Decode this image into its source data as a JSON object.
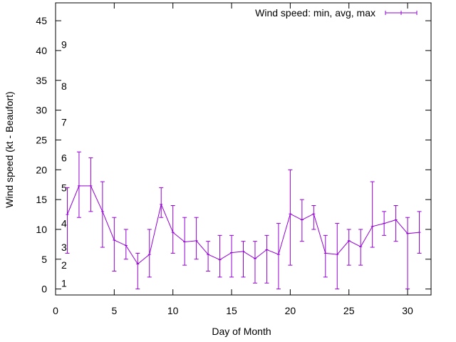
{
  "chart_data": {
    "type": "line",
    "title": "",
    "xlabel": "Day of Month",
    "ylabel": "Wind speed (kt - Beaufort)",
    "xlim": [
      0,
      32
    ],
    "ylim": [
      -1,
      48
    ],
    "xticks": [
      0,
      5,
      10,
      15,
      20,
      25,
      30
    ],
    "yticks": [
      0,
      5,
      10,
      15,
      20,
      25,
      30,
      35,
      40,
      45
    ],
    "legend": "top-right",
    "grid": false,
    "color": "#9400d3",
    "series": [
      {
        "name": "Wind speed: min, avg, max",
        "x": [
          1,
          2,
          3,
          4,
          5,
          6,
          7,
          8,
          9,
          10,
          11,
          12,
          13,
          14,
          15,
          16,
          17,
          18,
          19,
          20,
          21,
          22,
          23,
          24,
          25,
          26,
          27,
          28,
          29,
          30,
          31
        ],
        "avg": [
          12.5,
          17.3,
          17.3,
          13.0,
          8.2,
          7.3,
          4.2,
          5.8,
          14.2,
          9.5,
          7.9,
          8.1,
          5.8,
          4.9,
          6.1,
          6.3,
          5.1,
          6.6,
          5.8,
          12.6,
          11.6,
          12.6,
          6.0,
          5.8,
          8.1,
          7.1,
          10.5,
          11.0,
          11.6,
          9.3,
          9.5
        ],
        "min": [
          6,
          12,
          13,
          7,
          3,
          5,
          0,
          2,
          12,
          6,
          4,
          5,
          3,
          2,
          2,
          2,
          1,
          1,
          0,
          4,
          8,
          10,
          2,
          0,
          4,
          4,
          7,
          9,
          8,
          0,
          6
        ],
        "max": [
          17,
          23,
          22,
          18,
          12,
          10,
          6,
          10,
          17,
          14,
          12,
          12,
          8,
          9,
          9,
          8,
          8,
          9,
          11,
          20,
          15,
          14,
          9,
          11,
          10,
          10,
          18,
          13,
          14,
          12,
          13
        ]
      }
    ],
    "beaufort_labels": [
      {
        "label": "1",
        "y": 1
      },
      {
        "label": "2",
        "y": 4
      },
      {
        "label": "3",
        "y": 7
      },
      {
        "label": "4",
        "y": 11
      },
      {
        "label": "5",
        "y": 17
      },
      {
        "label": "6",
        "y": 22
      },
      {
        "label": "7",
        "y": 28
      },
      {
        "label": "8",
        "y": 34
      },
      {
        "label": "9",
        "y": 41
      }
    ]
  }
}
